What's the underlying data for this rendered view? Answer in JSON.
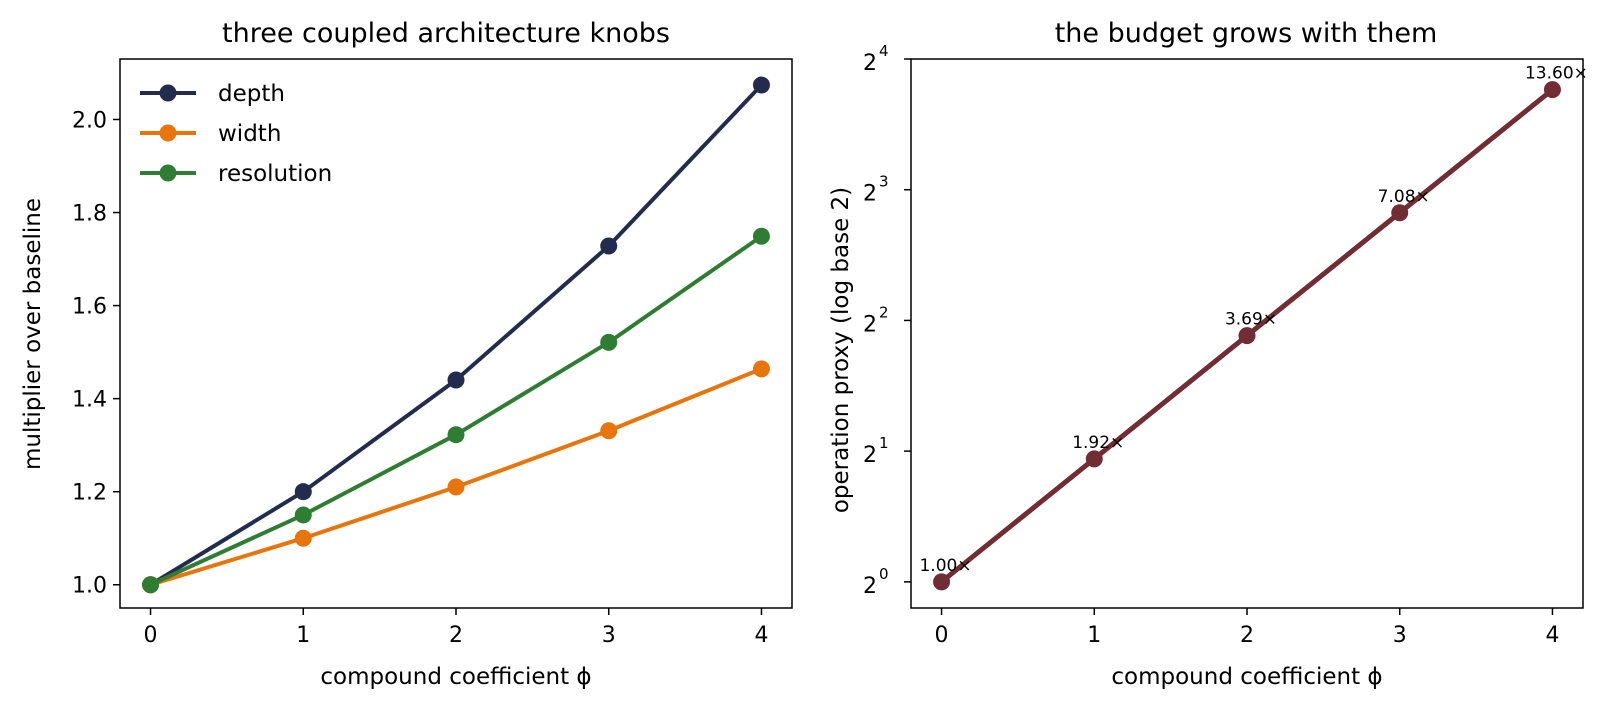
{
  "chart_data": [
    {
      "type": "line",
      "title": "three coupled architecture knobs",
      "xlabel": "compound coefficient ϕ",
      "ylabel": "multiplier over baseline",
      "x": [
        0,
        1,
        2,
        3,
        4
      ],
      "xlim": [
        -0.2,
        4.2
      ],
      "ylim": [
        0.95,
        2.13
      ],
      "xticks": [
        0,
        1,
        2,
        3,
        4
      ],
      "yticks": [
        1.0,
        1.2,
        1.4,
        1.6,
        1.8,
        2.0
      ],
      "ytick_labels": [
        "1.0",
        "1.2",
        "1.4",
        "1.6",
        "1.8",
        "2.0"
      ],
      "xtick_labels": [
        "0",
        "1",
        "2",
        "3",
        "4"
      ],
      "grid": false,
      "legend": "top-left",
      "series": [
        {
          "name": "depth",
          "color": "#222c4e",
          "values": [
            1.0,
            1.2,
            1.44,
            1.728,
            2.074
          ]
        },
        {
          "name": "width",
          "color": "#e8740c",
          "values": [
            1.0,
            1.1,
            1.21,
            1.331,
            1.464
          ]
        },
        {
          "name": "resolution",
          "color": "#2e7d32",
          "values": [
            1.0,
            1.15,
            1.3225,
            1.521,
            1.749
          ]
        }
      ]
    },
    {
      "type": "line",
      "title": "the budget grows with them",
      "xlabel": "compound coefficient ϕ",
      "ylabel": "operation proxy (log base 2)",
      "yscale": "log2",
      "x": [
        0,
        1,
        2,
        3,
        4
      ],
      "xlim": [
        -0.2,
        4.2
      ],
      "ylim_log2": [
        -0.2,
        4.0
      ],
      "xticks": [
        0,
        1,
        2,
        3,
        4
      ],
      "xtick_labels": [
        "0",
        "1",
        "2",
        "3",
        "4"
      ],
      "ytick_exponents": [
        0,
        1,
        2,
        3,
        4
      ],
      "ytick_base": "2",
      "grid": false,
      "series": [
        {
          "color": "#722c33",
          "values": [
            1.0,
            1.92,
            3.69,
            7.08,
            13.6
          ]
        }
      ],
      "annotations": [
        "1.00×",
        "1.92×",
        "3.69×",
        "7.08×",
        "13.60×"
      ]
    }
  ]
}
